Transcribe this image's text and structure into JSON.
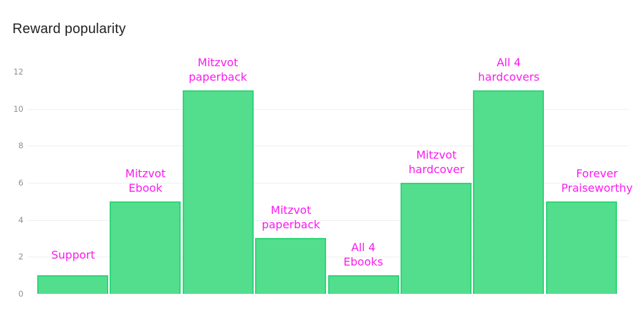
{
  "chart_data": {
    "type": "bar",
    "title": "Reward popularity",
    "categories": [
      "Support",
      "Mitzvot Ebook",
      "Mitzvot paperback",
      "Mitzvot paperback",
      "All 4 Ebooks",
      "Mitzvot hardcover",
      "All 4 hardcovers",
      "Forever Praiseworthy"
    ],
    "category_label_lines": [
      [
        "Support"
      ],
      [
        "Mitzvot",
        "Ebook"
      ],
      [
        "Mitzvot",
        "paperback"
      ],
      [
        "Mitzvot",
        "paperback"
      ],
      [
        "All 4",
        "Ebooks"
      ],
      [
        "Mitzvot",
        "hardcover"
      ],
      [
        "All 4",
        "hardcovers"
      ],
      [
        "Forever",
        "Praiseworthy"
      ]
    ],
    "values": [
      1,
      5,
      11,
      3,
      1,
      6,
      11,
      5
    ],
    "xlabel": "",
    "ylabel": "",
    "ylim": [
      0,
      12
    ],
    "yticks": [
      0,
      2,
      4,
      6,
      8,
      10,
      12
    ],
    "gridlines_at": [
      2,
      4,
      6,
      8,
      10
    ],
    "grid": true,
    "legend": "none",
    "bar_labels_position": "above-bars",
    "colors": {
      "bar_fill": "#53de8d",
      "bar_border": "#2fd578",
      "bar_label": "#fa1bf0",
      "title": "#212121",
      "tick_label": "#8f8f8f",
      "gridline": "#efefef",
      "background": "#ffffff"
    }
  }
}
